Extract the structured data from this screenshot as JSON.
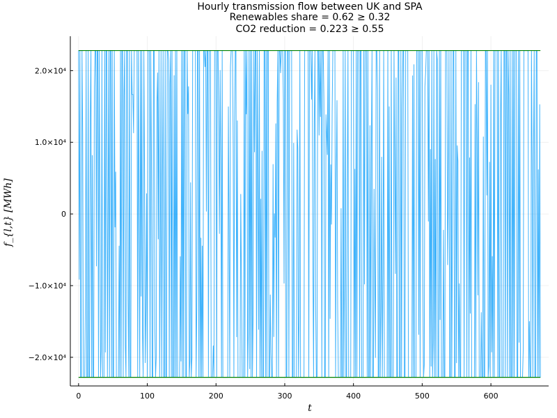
{
  "chart_data": {
    "type": "line",
    "title_lines": [
      "Hourly transmission flow between UK and SPA",
      "Renewables share = 0.62 ≥ 0.32",
      "CO2 reduction = 0.223 ≥ 0.55"
    ],
    "xlabel": "t",
    "ylabel": "f_{l,t} [MWh]",
    "xlim": [
      -12,
      684
    ],
    "ylim": [
      -24000,
      24800
    ],
    "xticks": [
      0,
      100,
      200,
      300,
      400,
      500,
      600
    ],
    "xtick_labels": [
      "0",
      "100",
      "200",
      "300",
      "400",
      "500",
      "600"
    ],
    "yticks": [
      -20000,
      -10000,
      0,
      10000,
      20000
    ],
    "ytick_labels": [
      "−2.0×10⁴",
      "−1.0×10⁴",
      "0",
      "1.0×10⁴",
      "2.0×10⁴"
    ],
    "grid": true,
    "legend": "none",
    "x_range": [
      0,
      672
    ],
    "series": [
      {
        "color": "#009AFA",
        "values": []
      },
      {
        "color": "#008000",
        "values": [
          22800,
          22800
        ]
      },
      {
        "color": "#008000",
        "values": [
          -22800,
          -22800
        ]
      }
    ],
    "generator_seed": 7,
    "flow_cap": 22800
  }
}
